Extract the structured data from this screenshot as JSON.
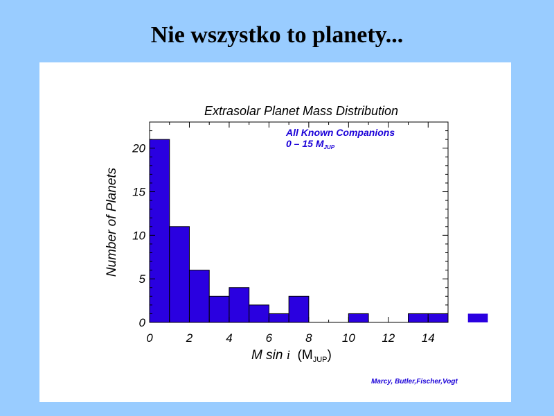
{
  "slide": {
    "title": "Nie wszystko to planety..."
  },
  "colors": {
    "background": "#99ccff",
    "bar": "#2a00e0",
    "annotation": "#1a00d8"
  },
  "chart_data": {
    "type": "bar",
    "title": "Extrasolar Planet Mass Distribution",
    "xlabel_main": "M sin ",
    "xlabel_italic": "i",
    "xlabel_unit_prefix": "  (M",
    "xlabel_unit_sub": "JUP",
    "xlabel_unit_suffix": ")",
    "ylabel": "Number of Planets",
    "annotation_line1": "All Known Companions",
    "annotation_line2_prefix": "0 – 15 M",
    "annotation_line2_sub": "JUP",
    "credit": "Marcy, Butler,Fischer,Vogt",
    "xlim": [
      0,
      15
    ],
    "ylim": [
      0,
      23
    ],
    "x_ticks": [
      "0",
      "2",
      "4",
      "6",
      "8",
      "10",
      "12",
      "14"
    ],
    "y_ticks": [
      "0",
      "5",
      "10",
      "15",
      "20"
    ],
    "bin_width": 1,
    "bars": [
      {
        "x0": 0,
        "value": 21
      },
      {
        "x0": 1,
        "value": 11
      },
      {
        "x0": 2,
        "value": 6
      },
      {
        "x0": 3,
        "value": 3
      },
      {
        "x0": 4,
        "value": 4
      },
      {
        "x0": 5,
        "value": 2
      },
      {
        "x0": 6,
        "value": 1
      },
      {
        "x0": 7,
        "value": 3
      },
      {
        "x0": 8,
        "value": 0
      },
      {
        "x0": 9,
        "value": 0
      },
      {
        "x0": 10,
        "value": 1
      },
      {
        "x0": 11,
        "value": 0
      },
      {
        "x0": 12,
        "value": 0
      },
      {
        "x0": 13,
        "value": 1
      },
      {
        "x0": 14,
        "value": 1
      }
    ],
    "outside_bar": {
      "x0": 16,
      "value": 1
    }
  }
}
